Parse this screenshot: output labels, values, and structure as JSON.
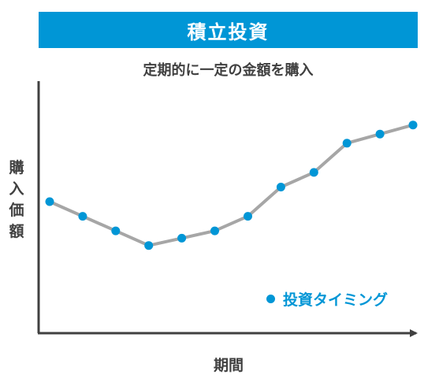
{
  "header": {
    "title": "積立投資"
  },
  "chart_data": {
    "type": "line",
    "title": "積立投資",
    "subtitle": "定期的に一定の金額を購入",
    "xlabel": "期間",
    "ylabel": "購入価額",
    "x": [
      1,
      2,
      3,
      4,
      5,
      6,
      7,
      8,
      9,
      10,
      11,
      12
    ],
    "series": [
      {
        "name": "投資タイミング",
        "values": [
          72,
          64,
          56,
          48,
          52,
          56,
          64,
          80,
          88,
          104,
          109,
          114
        ]
      }
    ],
    "ylim": [
      0,
      138
    ],
    "grid": false,
    "legend": "bottom-right",
    "colors": {
      "line": "#a6a6a6",
      "marker": "#0096d6",
      "axis": "#404040",
      "title_bg": "#0096d6"
    }
  }
}
